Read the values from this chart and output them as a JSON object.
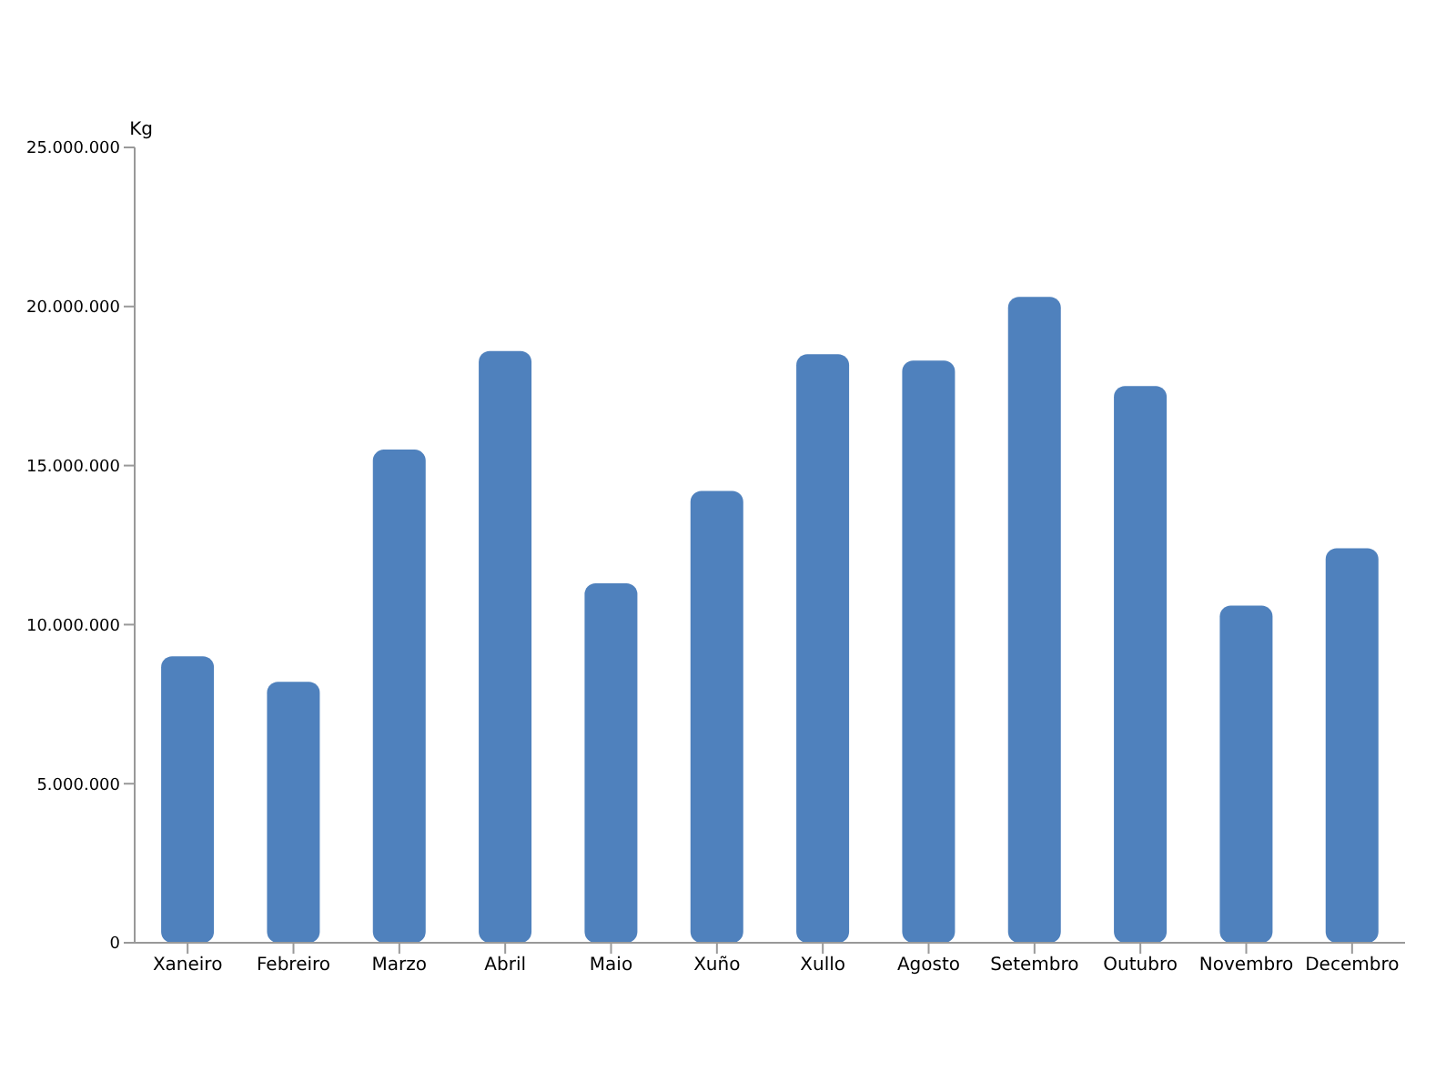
{
  "chart_data": {
    "type": "bar",
    "ylabel": "Kg",
    "categories": [
      "Xaneiro",
      "Febreiro",
      "Marzo",
      "Abril",
      "Maio",
      "Xuño",
      "Xullo",
      "Agosto",
      "Setembro",
      "Outubro",
      "Novembro",
      "Decembro"
    ],
    "values": [
      9000000,
      8200000,
      15500000,
      18600000,
      11300000,
      14200000,
      18500000,
      18300000,
      20300000,
      17500000,
      10600000,
      12400000
    ],
    "color": "#4f81bd",
    "ylim": [
      0,
      25000000
    ],
    "yticks": [
      {
        "value": 0,
        "label": "0"
      },
      {
        "value": 5000000,
        "label": "5.000.000"
      },
      {
        "value": 10000000,
        "label": "10.000.000"
      },
      {
        "value": 15000000,
        "label": "15.000.000"
      },
      {
        "value": 20000000,
        "label": "20.000.000"
      },
      {
        "value": 25000000,
        "label": "25.000.000"
      }
    ],
    "grid": false,
    "legend": false
  }
}
